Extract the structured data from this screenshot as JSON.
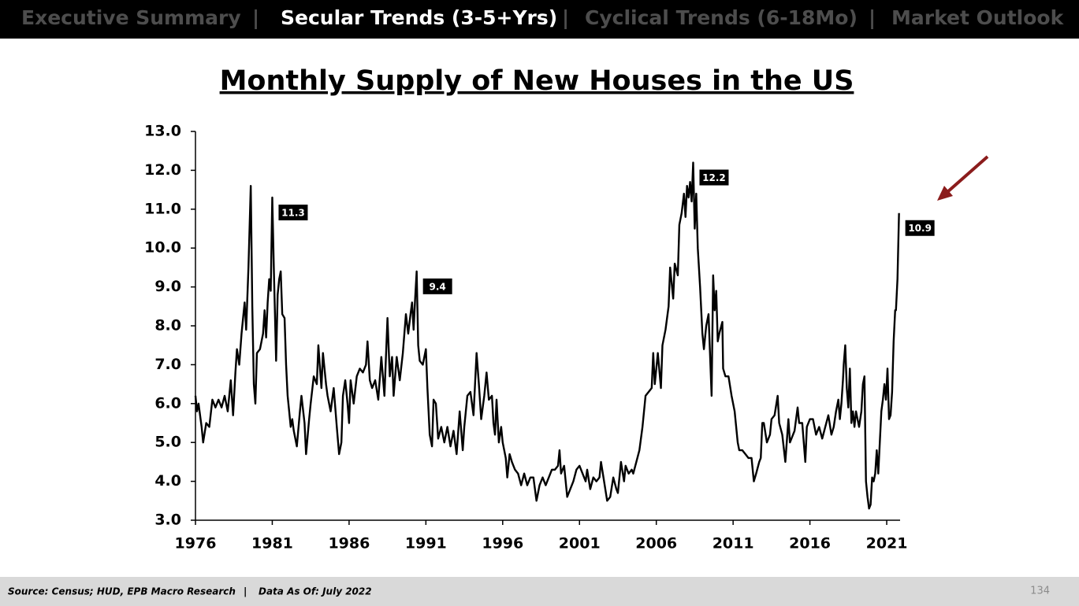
{
  "nav": {
    "items": [
      {
        "label": "Executive Summary",
        "active": false
      },
      {
        "label": "Secular Trends (3-5+Yrs)",
        "active": true
      },
      {
        "label": "Cyclical Trends (6-18Mo)",
        "active": false
      },
      {
        "label": "Market Outlook",
        "active": false
      }
    ],
    "separator": "|"
  },
  "chart_data": {
    "type": "line",
    "title": "Monthly Supply of New Houses in the US",
    "color": "#000000",
    "x": [
      1976.0,
      1976.1,
      1976.2,
      1976.4,
      1976.5,
      1976.7,
      1976.9,
      1977.1,
      1977.3,
      1977.5,
      1977.7,
      1977.9,
      1978.1,
      1978.3,
      1978.45,
      1978.6,
      1978.7,
      1978.85,
      1979.0,
      1979.2,
      1979.3,
      1979.45,
      1979.6,
      1979.7,
      1979.8,
      1979.9,
      1980.0,
      1980.2,
      1980.4,
      1980.5,
      1980.6,
      1980.7,
      1980.8,
      1980.9,
      1981.0,
      1981.1,
      1981.25,
      1981.35,
      1981.45,
      1981.55,
      1981.65,
      1981.8,
      1981.9,
      1982.0,
      1982.1,
      1982.2,
      1982.3,
      1982.4,
      1982.6,
      1982.8,
      1982.9,
      1983.1,
      1983.2,
      1983.4,
      1983.5,
      1983.7,
      1983.9,
      1984.0,
      1984.2,
      1984.3,
      1984.5,
      1984.6,
      1984.8,
      1985.0,
      1985.2,
      1985.35,
      1985.5,
      1985.6,
      1985.75,
      1985.9,
      1986.0,
      1986.1,
      1986.3,
      1986.5,
      1986.7,
      1986.9,
      1987.1,
      1987.2,
      1987.35,
      1987.5,
      1987.7,
      1987.9,
      1988.1,
      1988.3,
      1988.5,
      1988.65,
      1988.8,
      1988.9,
      1989.1,
      1989.3,
      1989.5,
      1989.7,
      1989.85,
      1990.0,
      1990.1,
      1990.2,
      1990.3,
      1990.4,
      1990.5,
      1990.6,
      1990.8,
      1991.0,
      1991.1,
      1991.25,
      1991.4,
      1991.5,
      1991.65,
      1991.8,
      1992.0,
      1992.2,
      1992.4,
      1992.6,
      1992.8,
      1993.0,
      1993.2,
      1993.4,
      1993.5,
      1993.7,
      1993.9,
      1994.1,
      1994.3,
      1994.45,
      1994.6,
      1994.8,
      1994.95,
      1995.1,
      1995.3,
      1995.4,
      1995.5,
      1995.6,
      1995.75,
      1995.9,
      1996.0,
      1996.2,
      1996.3,
      1996.45,
      1996.6,
      1996.8,
      1997.0,
      1997.2,
      1997.4,
      1997.6,
      1997.8,
      1998.0,
      1998.2,
      1998.4,
      1998.6,
      1998.8,
      1999.0,
      1999.2,
      1999.4,
      1999.6,
      1999.7,
      1999.8,
      2000.0,
      2000.2,
      2000.4,
      2000.6,
      2000.8,
      2001.0,
      2001.2,
      2001.4,
      2001.5,
      2001.7,
      2001.9,
      2002.1,
      2002.3,
      2002.4,
      2002.6,
      2002.8,
      2003.0,
      2003.2,
      2003.4,
      2003.5,
      2003.7,
      2003.9,
      2004.0,
      2004.2,
      2004.4,
      2004.5,
      2004.7,
      2004.9,
      2005.1,
      2005.3,
      2005.5,
      2005.7,
      2005.8,
      2005.9,
      2006.1,
      2006.3,
      2006.4,
      2006.6,
      2006.8,
      2006.9,
      2007.1,
      2007.2,
      2007.4,
      2007.5,
      2007.65,
      2007.8,
      2007.9,
      2008.0,
      2008.1,
      2008.2,
      2008.3,
      2008.4,
      2008.5,
      2008.6,
      2008.7,
      2008.85,
      2009.0,
      2009.1,
      2009.25,
      2009.4,
      2009.6,
      2009.7,
      2009.8,
      2009.9,
      2010.0,
      2010.1,
      2010.3,
      2010.35,
      2010.5,
      2010.7,
      2010.9,
      2011.1,
      2011.3,
      2011.4,
      2011.6,
      2011.8,
      2012.0,
      2012.2,
      2012.35,
      2012.5,
      2012.7,
      2012.8,
      2012.9,
      2013.0,
      2013.2,
      2013.4,
      2013.5,
      2013.7,
      2013.9,
      2014.0,
      2014.2,
      2014.4,
      2014.6,
      2014.7,
      2014.9,
      2015.0,
      2015.2,
      2015.3,
      2015.5,
      2015.7,
      2015.8,
      2016.0,
      2016.2,
      2016.4,
      2016.6,
      2016.8,
      2017.0,
      2017.2,
      2017.4,
      2017.55,
      2017.7,
      2017.85,
      2017.95,
      2018.05,
      2018.15,
      2018.2,
      2018.3,
      2018.4,
      2018.5,
      2018.6,
      2018.7,
      2018.8,
      2018.9,
      2019.0,
      2019.2,
      2019.35,
      2019.45,
      2019.55,
      2019.65,
      2019.75,
      2019.85,
      2019.95,
      2020.05,
      2020.15,
      2020.25,
      2020.35,
      2020.45,
      2020.55,
      2020.65,
      2020.75,
      2020.85,
      2020.95,
      2021.05,
      2021.15,
      2021.25,
      2021.35,
      2021.45,
      2021.55,
      2021.6,
      2021.7,
      2021.8
    ],
    "values": [
      6.2,
      5.8,
      6.0,
      5.4,
      5.0,
      5.5,
      5.4,
      6.1,
      5.9,
      6.1,
      5.9,
      6.2,
      5.8,
      6.6,
      5.7,
      6.8,
      7.4,
      7.0,
      7.8,
      8.6,
      7.9,
      9.5,
      11.6,
      8.5,
      6.5,
      6.0,
      7.3,
      7.4,
      7.8,
      8.4,
      7.7,
      8.6,
      9.2,
      8.9,
      11.3,
      9.5,
      7.1,
      8.8,
      9.2,
      9.4,
      8.3,
      8.2,
      7.0,
      6.2,
      5.8,
      5.4,
      5.6,
      5.3,
      4.9,
      5.8,
      6.2,
      5.5,
      4.7,
      5.6,
      6.0,
      6.7,
      6.5,
      7.5,
      6.4,
      7.3,
      6.5,
      6.2,
      5.8,
      6.4,
      5.4,
      4.7,
      5.0,
      6.2,
      6.6,
      6.0,
      5.5,
      6.6,
      6.0,
      6.7,
      6.9,
      6.8,
      7.0,
      7.6,
      6.6,
      6.4,
      6.6,
      6.1,
      7.2,
      6.2,
      8.2,
      6.7,
      7.2,
      6.2,
      7.2,
      6.6,
      7.3,
      8.3,
      7.8,
      8.3,
      8.6,
      7.9,
      8.7,
      9.4,
      7.5,
      7.1,
      7.0,
      7.4,
      6.4,
      5.2,
      4.9,
      6.1,
      6.0,
      5.1,
      5.4,
      5.0,
      5.4,
      4.9,
      5.3,
      4.7,
      5.8,
      4.8,
      5.4,
      6.2,
      6.3,
      5.7,
      7.3,
      6.5,
      5.6,
      6.2,
      6.8,
      6.1,
      6.2,
      5.5,
      5.2,
      6.1,
      5.0,
      5.4,
      5.0,
      4.6,
      4.1,
      4.7,
      4.5,
      4.3,
      4.2,
      3.9,
      4.2,
      3.9,
      4.1,
      4.1,
      3.5,
      3.9,
      4.1,
      3.9,
      4.1,
      4.3,
      4.3,
      4.4,
      4.8,
      4.2,
      4.4,
      3.6,
      3.8,
      4.0,
      4.3,
      4.4,
      4.2,
      4.0,
      4.3,
      3.8,
      4.1,
      4.0,
      4.1,
      4.5,
      4.0,
      3.5,
      3.6,
      4.1,
      3.8,
      3.7,
      4.5,
      4.0,
      4.4,
      4.2,
      4.3,
      4.2,
      4.5,
      4.8,
      5.4,
      6.2,
      6.3,
      6.4,
      7.3,
      6.5,
      7.3,
      6.4,
      7.5,
      7.9,
      8.5,
      9.5,
      8.7,
      9.6,
      9.3,
      10.6,
      10.9,
      11.4,
      10.8,
      11.6,
      11.3,
      11.7,
      11.2,
      12.2,
      10.5,
      11.4,
      10.0,
      9.0,
      7.8,
      7.4,
      8.0,
      8.3,
      6.2,
      9.3,
      8.4,
      8.9,
      7.6,
      7.8,
      8.1,
      6.9,
      6.7,
      6.7,
      6.2,
      5.8,
      5.0,
      4.8,
      4.8,
      4.7,
      4.6,
      4.6,
      4.0,
      4.2,
      4.5,
      4.6,
      5.5,
      5.5,
      5.0,
      5.2,
      5.6,
      5.7,
      6.2,
      5.5,
      5.2,
      4.5,
      5.6,
      5.0,
      5.2,
      5.3,
      5.9,
      5.5,
      5.5,
      4.5,
      5.4,
      5.6,
      5.6,
      5.2,
      5.4,
      5.1,
      5.4,
      5.7,
      5.2,
      5.4,
      5.8,
      6.1,
      5.6,
      6.0,
      6.6,
      7.0,
      7.5,
      6.4,
      5.9,
      6.9,
      5.5,
      5.8,
      5.4,
      5.8,
      5.4,
      5.8,
      6.5,
      6.7,
      4.0,
      3.6,
      3.3,
      3.4,
      4.1,
      4.0,
      4.2,
      4.8,
      4.2,
      5.0,
      5.8,
      6.1,
      6.5,
      6.1,
      6.9,
      5.6,
      5.7,
      6.3,
      7.6,
      8.4,
      8.4,
      9.2,
      10.9
    ],
    "xlim": [
      1976,
      2021.87
    ],
    "xticks": [
      1976,
      1981,
      1986,
      1991,
      1996,
      2001,
      2006,
      2011,
      2016,
      2021
    ],
    "ylim": [
      3,
      13
    ],
    "yticks": [
      {
        "value": 3,
        "label": "3.0"
      },
      {
        "value": 4,
        "label": "4.0"
      },
      {
        "value": 5,
        "label": "5.0"
      },
      {
        "value": 6,
        "label": "6.0"
      },
      {
        "value": 7,
        "label": "7.0"
      },
      {
        "value": 8,
        "label": "8.0"
      },
      {
        "value": 9,
        "label": "9.0"
      },
      {
        "value": 10,
        "label": "10.0"
      },
      {
        "value": 11,
        "label": "11.0"
      },
      {
        "value": 12,
        "label": "12.0"
      },
      {
        "value": 13,
        "label": "13.0"
      }
    ],
    "grid": false,
    "annotations": [
      {
        "x": 1981.0,
        "value": 11.3
      },
      {
        "x": 1990.4,
        "value": 9.4
      },
      {
        "x": 2008.4,
        "value": 12.2
      },
      {
        "x": 2021.8,
        "value": 10.9
      }
    ]
  },
  "footer": {
    "source": "Source: Census; HUD, EPB Macro Research",
    "separator": "|",
    "as_of": "Data As Of: July 2022",
    "page": "134"
  }
}
